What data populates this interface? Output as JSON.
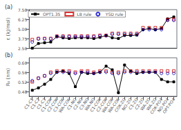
{
  "chart_data": [
    {
      "type": "line",
      "title": "(a)",
      "ylabel": "ε (kJ/mol)",
      "categories": [
        "C1-C1",
        "C1-C2",
        "C1-C3",
        "C1-COK",
        "C2-COK",
        "C3-COK",
        "WA-COK",
        "C1-NO",
        "C2-NO",
        "C3-NO",
        "WA-NO",
        "C1-COK",
        "C2-COK",
        "WA-COK",
        "WA-COK",
        "COK-ZO",
        "NO-ZO",
        "C1-ZO",
        "C2-ZO",
        "WA-ZO",
        "WA-ZO",
        "COK-PO4",
        "NO-PO4",
        "OPT-PO4"
      ],
      "series": [
        {
          "name": "OPT1.35",
          "type": "line",
          "color": "#000000",
          "marker": "square",
          "values": [
            2.5,
            3.1,
            3.2,
            3.3,
            4.0,
            3.85,
            3.75,
            3.85,
            3.85,
            3.85,
            3.75,
            3.9,
            4.15,
            3.85,
            3.75,
            4.15,
            4.15,
            4.2,
            4.9,
            5.05,
            4.9,
            5.05,
            6.3,
            6.55
          ]
        },
        {
          "name": "LB rule",
          "type": "scatter",
          "color": "#CC0000",
          "marker": "open-square",
          "values": [
            3.6,
            3.75,
            3.75,
            3.75,
            4.05,
            4.05,
            4.05,
            4.05,
            4.05,
            4.05,
            4.05,
            4.15,
            4.15,
            4.4,
            4.4,
            4.4,
            4.4,
            4.4,
            5.15,
            5.15,
            5.15,
            5.15,
            6.2,
            6.25
          ]
        },
        {
          "name": "YSD rule",
          "type": "scatter",
          "color": "#0000CC",
          "marker": "open-circle",
          "values": [
            3.3,
            3.7,
            3.7,
            3.7,
            4.0,
            4.0,
            4.0,
            4.0,
            4.0,
            4.0,
            4.0,
            4.1,
            4.1,
            4.3,
            4.3,
            4.3,
            4.3,
            4.3,
            4.9,
            4.9,
            4.9,
            4.9,
            6.1,
            6.1
          ]
        }
      ],
      "ylim": [
        2.5,
        7.5
      ],
      "yticks": [
        {
          "value": 2.5,
          "label": "2.50"
        },
        3.75,
        {
          "value": 5,
          "label": "5.00"
        },
        6.25,
        {
          "value": 7.5,
          "label": "7.50"
        }
      ],
      "grid": false,
      "legend": "upper left",
      "tick_labels": "y"
    },
    {
      "type": "line",
      "title": "(b)",
      "ylabel": "R₀ (nm)",
      "categories": [
        "C1-C1",
        "C1-C2",
        "C1-C3",
        "C1-COK",
        "C2-COK",
        "C3-COK",
        "WA-COK",
        "C1-NO",
        "C2-NO",
        "C3-NO",
        "WA-NO",
        "C1-COK",
        "C2-COK",
        "WA-COK",
        "WA-COK",
        "COK-ZO",
        "NO-ZO",
        "C1-ZO",
        "C2-ZO",
        "WA-ZO",
        "WA-ZO",
        "COK-PO4",
        "NO-PO4",
        "OPT-PO4"
      ],
      "series": [
        {
          "type": "line",
          "color": "#000000",
          "marker": "square",
          "values": [
            0.485,
            0.495,
            0.51,
            0.53,
            0.56,
            0.565,
            0.555,
            0.5,
            0.56,
            0.555,
            0.555,
            0.56,
            0.585,
            0.57,
            0.475,
            0.59,
            0.565,
            0.555,
            0.56,
            0.56,
            0.56,
            0.53,
            0.52,
            0.52
          ]
        },
        {
          "type": "scatter",
          "color": "#CC0000",
          "marker": "open-square",
          "values": [
            0.52,
            0.535,
            0.545,
            0.56,
            0.565,
            0.565,
            0.565,
            0.56,
            0.565,
            0.565,
            0.56,
            0.565,
            0.565,
            0.56,
            0.56,
            0.565,
            0.565,
            0.565,
            0.565,
            0.565,
            0.565,
            0.565,
            0.565,
            0.565
          ]
        },
        {
          "type": "scatter",
          "color": "#0000CC",
          "marker": "open-circle",
          "values": [
            0.525,
            0.535,
            0.545,
            0.555,
            0.56,
            0.56,
            0.56,
            0.555,
            0.56,
            0.56,
            0.555,
            0.56,
            0.56,
            0.555,
            0.555,
            0.56,
            0.56,
            0.56,
            0.56,
            0.56,
            0.56,
            0.555,
            0.555,
            0.555
          ]
        }
      ],
      "ylim": [
        0.46,
        0.62
      ],
      "yticks": [
        0.48,
        0.52,
        0.56,
        {
          "value": 0.6,
          "label": "0.60"
        }
      ],
      "grid": false
    }
  ]
}
